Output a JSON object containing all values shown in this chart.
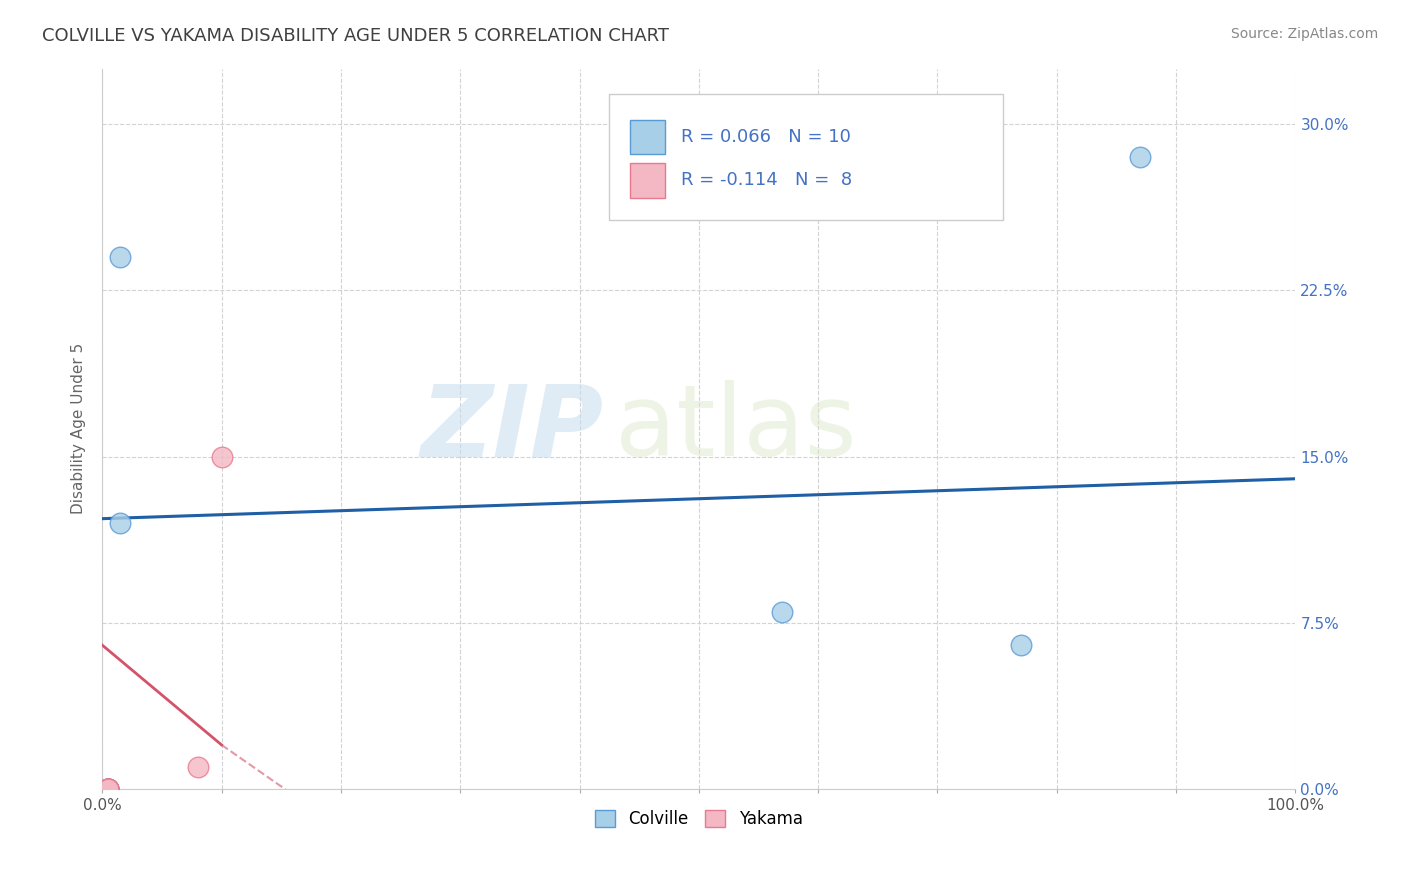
{
  "title": "COLVILLE VS YAKAMA DISABILITY AGE UNDER 5 CORRELATION CHART",
  "source": "Source: ZipAtlas.com",
  "ylabel": "Disability Age Under 5",
  "xlim": [
    0.0,
    1.0
  ],
  "ylim": [
    0.0,
    0.325
  ],
  "xticks": [
    0.0,
    0.1,
    0.2,
    0.3,
    0.4,
    0.5,
    0.6,
    0.7,
    0.8,
    0.9,
    1.0
  ],
  "xtick_labels_show": {
    "0.0": "0.0%",
    "1.0": "100.0%"
  },
  "yticks": [
    0.0,
    0.075,
    0.15,
    0.225,
    0.3
  ],
  "ytick_labels": [
    "0.0%",
    "7.5%",
    "15.0%",
    "22.5%",
    "30.0%"
  ],
  "colville_x": [
    0.005,
    0.005,
    0.005,
    0.005,
    0.005,
    0.015,
    0.015,
    0.57,
    0.77,
    0.87
  ],
  "colville_y": [
    0.0,
    0.0,
    0.0,
    0.0,
    0.0,
    0.12,
    0.24,
    0.08,
    0.065,
    0.285
  ],
  "yakama_x": [
    0.005,
    0.005,
    0.005,
    0.005,
    0.005,
    0.005,
    0.08,
    0.1
  ],
  "yakama_y": [
    0.0,
    0.0,
    0.0,
    0.0,
    0.0,
    0.0,
    0.01,
    0.15
  ],
  "colville_color": "#a8cfe8",
  "yakama_color": "#f4b8c4",
  "colville_edge": "#5b9bd5",
  "yakama_edge": "#e87a90",
  "trend_colville_color": "#1f5fa6",
  "trend_yakama_color": "#d4536a",
  "R_colville": 0.066,
  "N_colville": 10,
  "R_yakama": -0.114,
  "N_yakama": 8,
  "background": "#ffffff",
  "grid_color": "#c8c8c8",
  "watermark_zip": "ZIP",
  "watermark_atlas": "atlas",
  "legend_labels": [
    "Colville",
    "Yakama"
  ],
  "title_color": "#404040",
  "source_color": "#888888",
  "yaxis_tick_color": "#4472c4",
  "legend_text_color": "#4472c4"
}
